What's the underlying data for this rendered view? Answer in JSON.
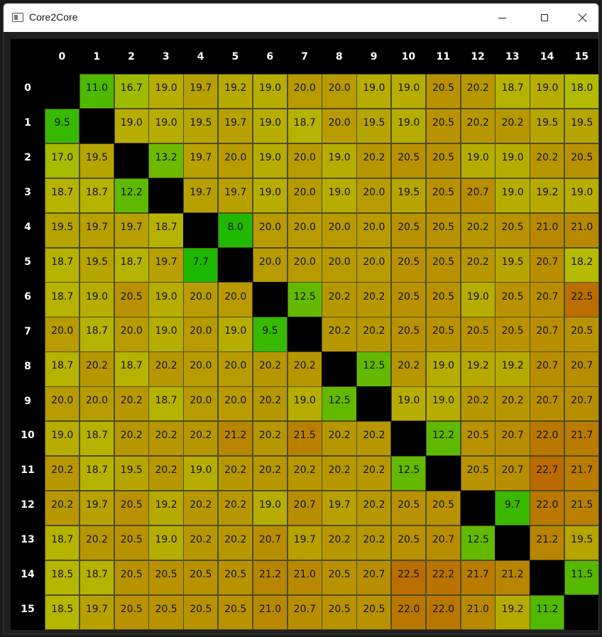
{
  "window": {
    "title": "Core2Core"
  },
  "headers": [
    "0",
    "1",
    "2",
    "3",
    "4",
    "5",
    "6",
    "7",
    "8",
    "9",
    "10",
    "11",
    "12",
    "13",
    "14",
    "15"
  ],
  "matrix": [
    [
      null,
      11.0,
      16.7,
      19.0,
      19.7,
      19.2,
      19.0,
      20.0,
      20.0,
      19.0,
      19.0,
      20.5,
      20.2,
      18.7,
      19.0,
      18.0
    ],
    [
      9.5,
      null,
      19.0,
      19.0,
      19.5,
      19.7,
      19.0,
      18.7,
      20.0,
      19.5,
      19.0,
      20.5,
      20.2,
      20.2,
      19.5,
      19.5
    ],
    [
      17.0,
      19.5,
      null,
      13.2,
      19.7,
      20.0,
      19.0,
      20.0,
      19.0,
      20.2,
      20.5,
      20.5,
      19.0,
      19.0,
      20.2,
      20.5
    ],
    [
      18.7,
      18.7,
      12.2,
      null,
      19.7,
      19.7,
      19.0,
      20.0,
      19.0,
      20.0,
      19.5,
      20.5,
      20.7,
      19.0,
      19.2,
      19.0
    ],
    [
      19.5,
      19.7,
      19.7,
      18.7,
      null,
      8.0,
      20.0,
      20.0,
      20.0,
      20.0,
      20.5,
      20.5,
      20.2,
      20.5,
      21.0,
      21.0
    ],
    [
      18.7,
      19.5,
      18.7,
      19.7,
      7.7,
      null,
      20.0,
      20.0,
      20.0,
      20.0,
      20.5,
      20.5,
      20.2,
      19.5,
      20.7,
      18.2
    ],
    [
      18.7,
      19.0,
      20.5,
      19.0,
      20.0,
      20.0,
      null,
      12.5,
      20.2,
      20.2,
      20.5,
      20.5,
      19.0,
      20.5,
      20.7,
      22.5
    ],
    [
      20.0,
      18.7,
      20.0,
      19.0,
      20.0,
      19.0,
      9.5,
      null,
      20.2,
      20.2,
      20.5,
      20.5,
      20.5,
      20.5,
      20.7,
      20.5
    ],
    [
      18.7,
      20.2,
      18.7,
      20.2,
      20.0,
      20.0,
      20.2,
      20.2,
      null,
      12.5,
      20.2,
      19.0,
      19.2,
      19.2,
      20.7,
      20.7
    ],
    [
      20.0,
      20.0,
      20.2,
      18.7,
      20.0,
      20.0,
      20.2,
      19.0,
      12.5,
      null,
      19.0,
      19.0,
      20.2,
      20.2,
      20.7,
      20.7
    ],
    [
      19.0,
      18.7,
      20.2,
      20.2,
      20.2,
      21.2,
      20.2,
      21.5,
      20.2,
      20.2,
      null,
      12.2,
      20.5,
      20.7,
      22.0,
      21.7
    ],
    [
      20.2,
      18.7,
      19.5,
      20.2,
      19.0,
      20.2,
      20.2,
      20.2,
      20.2,
      20.2,
      12.5,
      null,
      20.5,
      20.7,
      22.7,
      21.7
    ],
    [
      20.2,
      19.7,
      20.5,
      19.2,
      20.2,
      20.2,
      19.0,
      20.7,
      19.7,
      20.2,
      20.5,
      20.5,
      null,
      9.7,
      22.0,
      21.5
    ],
    [
      18.7,
      20.2,
      20.5,
      19.0,
      20.2,
      20.2,
      20.7,
      19.7,
      20.2,
      20.2,
      20.5,
      20.7,
      12.5,
      null,
      21.2,
      19.5
    ],
    [
      18.5,
      18.7,
      20.5,
      20.5,
      20.5,
      20.5,
      21.2,
      21.0,
      20.5,
      20.7,
      22.5,
      22.2,
      21.7,
      21.2,
      null,
      11.5
    ],
    [
      18.5,
      19.7,
      20.5,
      20.5,
      20.5,
      20.5,
      21.0,
      20.7,
      20.5,
      20.5,
      22.0,
      22.0,
      21.0,
      19.2,
      11.2,
      null
    ]
  ],
  "scale": {
    "min": 7.7,
    "max": 22.7,
    "low_color": "#1db800",
    "mid_color": "#b5bb00",
    "high_color": "#ba6a00",
    "diagonal_color": "#000000"
  }
}
